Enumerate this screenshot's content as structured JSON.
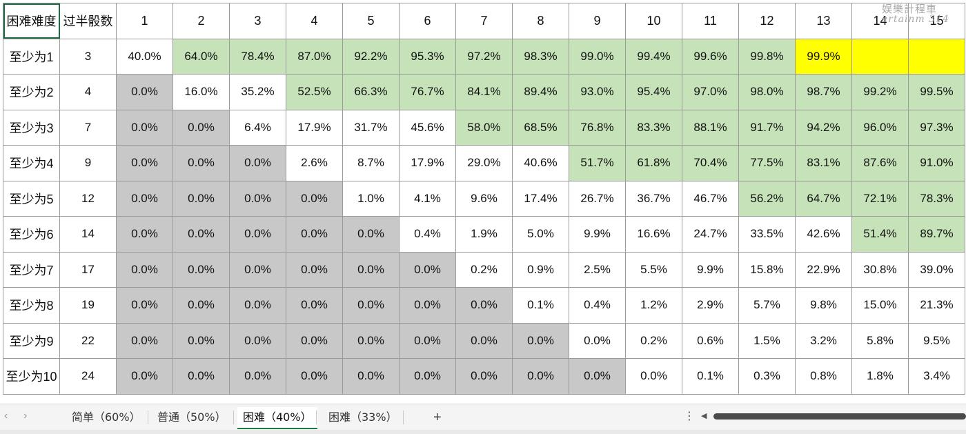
{
  "table": {
    "header": [
      "困难难度",
      "过半骰数",
      "1",
      "2",
      "3",
      "4",
      "5",
      "6",
      "7",
      "8",
      "9",
      "10",
      "11",
      "12",
      "13",
      "14",
      "15"
    ],
    "rows": [
      {
        "label": "至少为1",
        "half": "3",
        "cells": [
          "40.0%",
          "64.0%",
          "78.4%",
          "87.0%",
          "92.2%",
          "95.3%",
          "97.2%",
          "98.3%",
          "99.0%",
          "99.4%",
          "99.6%",
          "99.8%",
          "99.9%",
          "",
          ""
        ]
      },
      {
        "label": "至少为2",
        "half": "4",
        "cells": [
          "0.0%",
          "16.0%",
          "35.2%",
          "52.5%",
          "66.3%",
          "76.7%",
          "84.1%",
          "89.4%",
          "93.0%",
          "95.4%",
          "97.0%",
          "98.0%",
          "98.7%",
          "99.2%",
          "99.5%"
        ]
      },
      {
        "label": "至少为3",
        "half": "7",
        "cells": [
          "0.0%",
          "0.0%",
          "6.4%",
          "17.9%",
          "31.7%",
          "45.6%",
          "58.0%",
          "68.5%",
          "76.8%",
          "83.3%",
          "88.1%",
          "91.7%",
          "94.2%",
          "96.0%",
          "97.3%"
        ]
      },
      {
        "label": "至少为4",
        "half": "9",
        "cells": [
          "0.0%",
          "0.0%",
          "0.0%",
          "2.6%",
          "8.7%",
          "17.9%",
          "29.0%",
          "40.6%",
          "51.7%",
          "61.8%",
          "70.4%",
          "77.5%",
          "83.1%",
          "87.6%",
          "91.0%"
        ]
      },
      {
        "label": "至少为5",
        "half": "12",
        "cells": [
          "0.0%",
          "0.0%",
          "0.0%",
          "0.0%",
          "1.0%",
          "4.1%",
          "9.6%",
          "17.4%",
          "26.7%",
          "36.7%",
          "46.7%",
          "56.2%",
          "64.7%",
          "72.1%",
          "78.3%"
        ]
      },
      {
        "label": "至少为6",
        "half": "14",
        "cells": [
          "0.0%",
          "0.0%",
          "0.0%",
          "0.0%",
          "0.0%",
          "0.4%",
          "1.9%",
          "5.0%",
          "9.9%",
          "16.6%",
          "24.7%",
          "33.5%",
          "42.6%",
          "51.4%",
          "89.7%"
        ]
      },
      {
        "label": "至少为7",
        "half": "17",
        "cells": [
          "0.0%",
          "0.0%",
          "0.0%",
          "0.0%",
          "0.0%",
          "0.0%",
          "0.2%",
          "0.9%",
          "2.5%",
          "5.5%",
          "9.9%",
          "15.8%",
          "22.9%",
          "30.8%",
          "39.0%"
        ]
      },
      {
        "label": "至少为8",
        "half": "19",
        "cells": [
          "0.0%",
          "0.0%",
          "0.0%",
          "0.0%",
          "0.0%",
          "0.0%",
          "0.0%",
          "0.1%",
          "0.4%",
          "1.2%",
          "2.9%",
          "5.7%",
          "9.8%",
          "15.0%",
          "21.3%"
        ]
      },
      {
        "label": "至少为9",
        "half": "22",
        "cells": [
          "0.0%",
          "0.0%",
          "0.0%",
          "0.0%",
          "0.0%",
          "0.0%",
          "0.0%",
          "0.0%",
          "0.0%",
          "0.2%",
          "0.6%",
          "1.5%",
          "3.2%",
          "5.8%",
          "9.5%"
        ]
      },
      {
        "label": "至少为10",
        "half": "24",
        "cells": [
          "0.0%",
          "0.0%",
          "0.0%",
          "0.0%",
          "0.0%",
          "0.0%",
          "0.0%",
          "0.0%",
          "0.0%",
          "0.0%",
          "0.1%",
          "0.3%",
          "0.8%",
          "1.8%",
          "3.4%"
        ]
      }
    ],
    "fills": [
      [
        "w",
        "g",
        "g",
        "g",
        "g",
        "g",
        "g",
        "g",
        "g",
        "g",
        "g",
        "g",
        "y",
        "y",
        "y"
      ],
      [
        "d",
        "w",
        "w",
        "g",
        "g",
        "g",
        "g",
        "g",
        "g",
        "g",
        "g",
        "g",
        "g",
        "g",
        "g"
      ],
      [
        "d",
        "d",
        "w",
        "w",
        "w",
        "w",
        "g",
        "g",
        "g",
        "g",
        "g",
        "g",
        "g",
        "g",
        "g"
      ],
      [
        "d",
        "d",
        "d",
        "w",
        "w",
        "w",
        "w",
        "w",
        "g",
        "g",
        "g",
        "g",
        "g",
        "g",
        "g"
      ],
      [
        "d",
        "d",
        "d",
        "d",
        "w",
        "w",
        "w",
        "w",
        "w",
        "w",
        "w",
        "g",
        "g",
        "g",
        "g"
      ],
      [
        "d",
        "d",
        "d",
        "d",
        "d",
        "w",
        "w",
        "w",
        "w",
        "w",
        "w",
        "w",
        "w",
        "g",
        "g"
      ],
      [
        "d",
        "d",
        "d",
        "d",
        "d",
        "d",
        "w",
        "w",
        "w",
        "w",
        "w",
        "w",
        "w",
        "w",
        "w"
      ],
      [
        "d",
        "d",
        "d",
        "d",
        "d",
        "d",
        "d",
        "w",
        "w",
        "w",
        "w",
        "w",
        "w",
        "w",
        "w"
      ],
      [
        "d",
        "d",
        "d",
        "d",
        "d",
        "d",
        "d",
        "d",
        "w",
        "w",
        "w",
        "w",
        "w",
        "w",
        "w"
      ],
      [
        "d",
        "d",
        "d",
        "d",
        "d",
        "d",
        "d",
        "d",
        "d",
        "w",
        "w",
        "w",
        "w",
        "w",
        "w"
      ]
    ]
  },
  "colors": {
    "green": "#c6e2b8",
    "gray": "#c8c8c8",
    "yellow": "#ffff00",
    "active_tab_underline": "#1a7a40"
  },
  "watermark": {
    "line1": "娱樂計程車",
    "line2": "ertainm 314"
  },
  "tabs": [
    {
      "label": "简单（60%）"
    },
    {
      "label": "普通（50%）"
    },
    {
      "label": "困难（40%）",
      "active": true
    },
    {
      "label": "困难（33%）"
    }
  ],
  "icons": {
    "prev": "chevron-left-icon",
    "next": "chevron-right-icon",
    "add": "plus-icon",
    "more": "vertical-ellipsis-icon"
  },
  "tabbar": {
    "add_label": "+",
    "more_label": "⋮",
    "prev_label": "‹",
    "next_label": "›"
  }
}
